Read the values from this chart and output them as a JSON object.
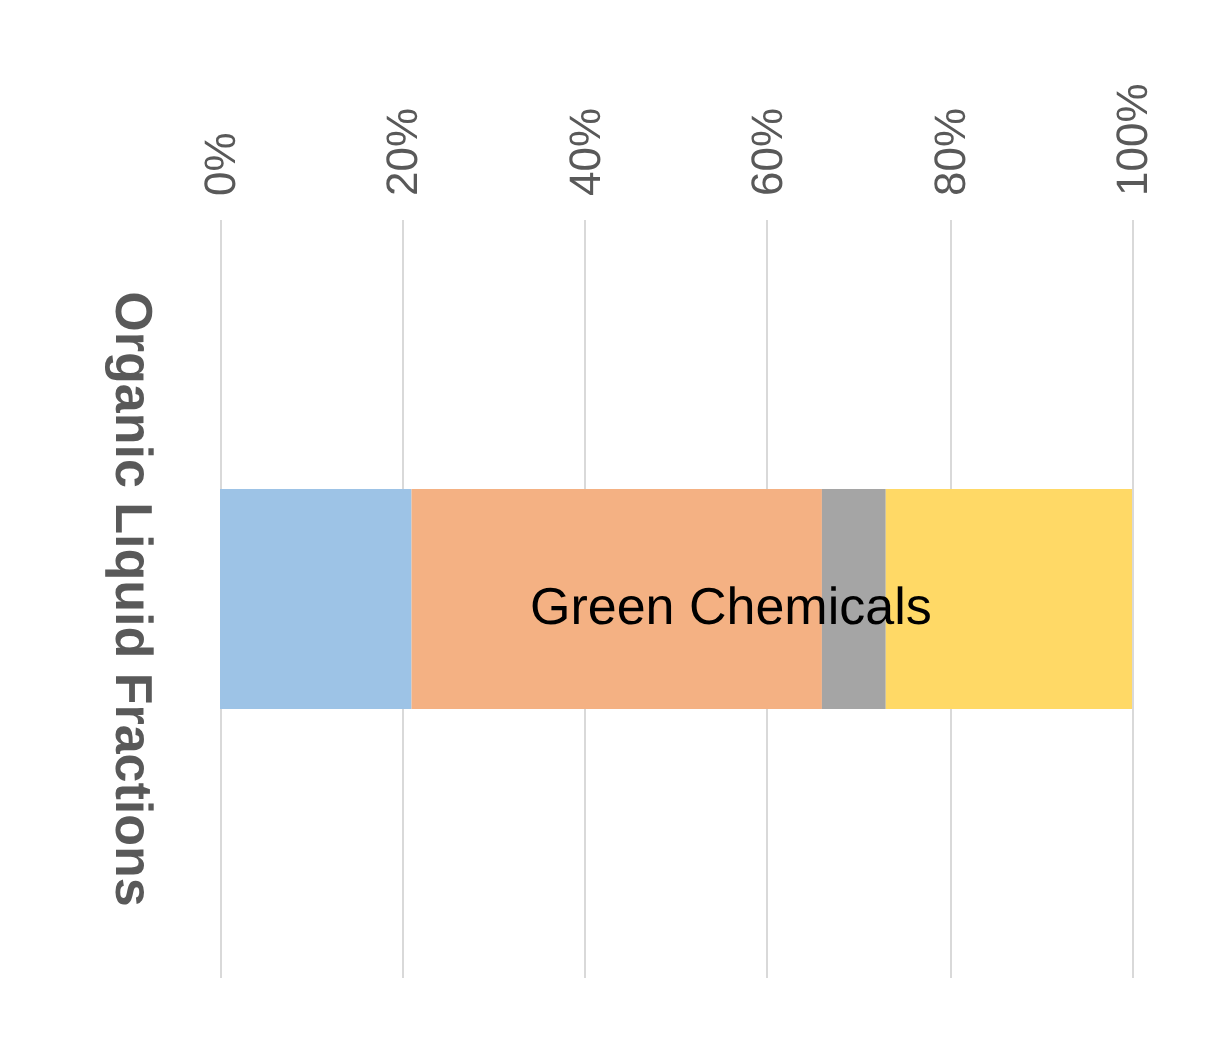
{
  "chart_data": {
    "type": "bar",
    "orientation": "horizontal",
    "stacked": true,
    "ylabel": "Organic Liquid Fractions",
    "categories": [
      null
    ],
    "series": [
      {
        "color": "#9dc3e6",
        "values": [
          21
        ]
      },
      {
        "color": "#f4b183",
        "values": [
          45
        ]
      },
      {
        "color": "#a5a5a5",
        "values": [
          7
        ]
      },
      {
        "color": "#ffd966",
        "values": [
          27
        ]
      }
    ],
    "xlim": [
      0,
      100
    ],
    "xticks": [
      {
        "value": 0,
        "label": "0%"
      },
      {
        "value": 20,
        "label": "20%"
      },
      {
        "value": 40,
        "label": "40%"
      },
      {
        "value": 60,
        "label": "60%"
      },
      {
        "value": 80,
        "label": "80%"
      },
      {
        "value": 100,
        "label": "100%"
      }
    ],
    "grid": "x",
    "annotations": [
      "Green Chemicals"
    ]
  }
}
